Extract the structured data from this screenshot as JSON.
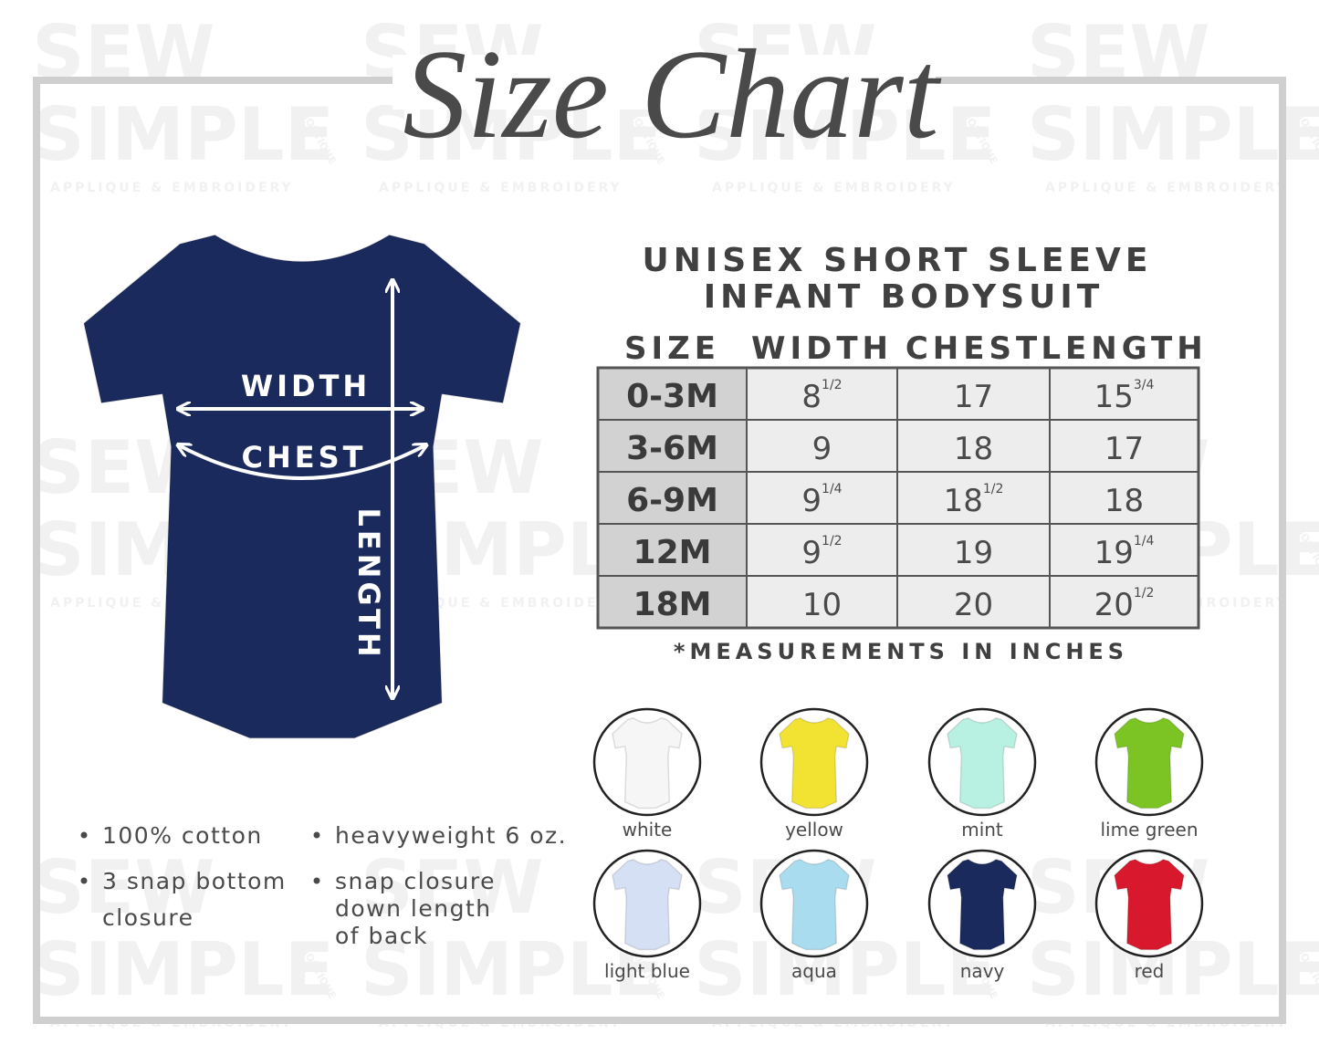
{
  "watermark": {
    "line1": "SEW",
    "line2": "SIMPLE",
    "line3": "APPLIQUE & EMBROIDERY",
    "line4": "BOUTIQUE"
  },
  "header": {
    "title": "Size Chart"
  },
  "diagram": {
    "width_label": "WIDTH",
    "chest_label": "CHEST",
    "length_label": "LENGTH",
    "color": "#1b2a5c"
  },
  "product": {
    "title_line1": "UNISEX SHORT SLEEVE",
    "title_line2": "INFANT BODYSUIT"
  },
  "table": {
    "columns": [
      "SIZE",
      "WIDTH",
      "CHEST",
      "LENGTH"
    ],
    "rows": [
      [
        "0-3M",
        {
          "whole": "8",
          "fraction": "1/2"
        },
        "17",
        {
          "whole": "15",
          "fraction": "3/4"
        }
      ],
      [
        "3-6M",
        "9",
        "18",
        "17"
      ],
      [
        "6-9M",
        {
          "whole": "9",
          "fraction": "1/4"
        },
        {
          "whole": "18",
          "fraction": "1/2"
        },
        "18"
      ],
      [
        "12M",
        {
          "whole": "9",
          "fraction": "1/2"
        },
        "19",
        {
          "whole": "19",
          "fraction": "1/4"
        }
      ],
      [
        "18M",
        "10",
        "20",
        {
          "whole": "20",
          "fraction": "1/2"
        }
      ]
    ]
  },
  "note": "*MEASUREMENTS IN INCHES",
  "features": [
    {
      "lines": [
        "100% cotton"
      ]
    },
    {
      "lines": [
        "heavyweight 6 oz."
      ]
    },
    {
      "lines": [
        "3 snap bottom",
        "closure"
      ]
    },
    {
      "lines": [
        "snap closure",
        "down length",
        "of back"
      ]
    }
  ],
  "colors": [
    {
      "name": "white",
      "color": "#f6f6f6"
    },
    {
      "name": "yellow",
      "color": "#f2e232"
    },
    {
      "name": "mint",
      "color": "#b8f0e2"
    },
    {
      "name": "lime green",
      "color": "#7cc424"
    },
    {
      "name": "light blue",
      "color": "#d6e0f4"
    },
    {
      "name": "aqua",
      "color": "#a9dcef"
    },
    {
      "name": "navy",
      "color": "#1b2a5c"
    },
    {
      "name": "red",
      "color": "#d8182c"
    }
  ]
}
